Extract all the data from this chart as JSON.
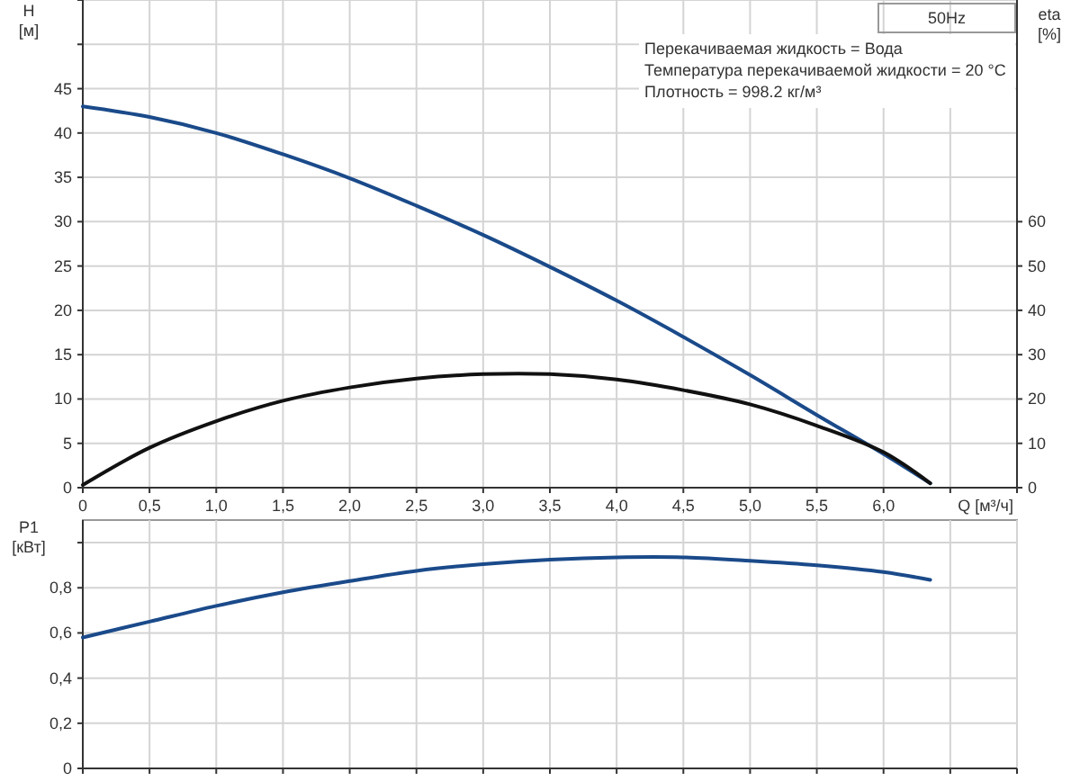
{
  "chart_data": [
    {
      "type": "line",
      "xlabel": "Q [м³/ч]",
      "ylabel": "H [м]",
      "y2label": "eta [%]",
      "annotations": [
        "50Hz",
        "Перекачиваемая жидкость = Вода",
        "Температура перекачиваемой жидкости = 20 °C",
        "Плотность = 998.2 кг/м³"
      ],
      "x": [
        0,
        0.5,
        1,
        1.5,
        2,
        2.5,
        3,
        3.5,
        4,
        4.5,
        5,
        5.5,
        6,
        6.35
      ],
      "series": [
        {
          "color": "#1a4a8a",
          "values": [
            43,
            41.8,
            40,
            37.6,
            34.9,
            31.8,
            28.5,
            24.9,
            21.1,
            17,
            12.7,
            8.2,
            3.8,
            0.5
          ]
        },
        {
          "color": "#111111",
          "axis": "y2",
          "values": [
            0.6,
            9,
            15,
            19.6,
            22.6,
            24.6,
            25.6,
            25.6,
            24.4,
            22,
            18.8,
            14,
            8,
            1
          ]
        }
      ],
      "xlim": [
        0,
        7
      ],
      "xticks": [
        0,
        {
          "value": 0.5,
          "label": "0,5"
        },
        {
          "value": 1,
          "label": "1,0"
        },
        {
          "value": 1.5,
          "label": "1,5"
        },
        {
          "value": 2,
          "label": "2,0"
        },
        {
          "value": 2.5,
          "label": "2,5"
        },
        {
          "value": 3,
          "label": "3,0"
        },
        {
          "value": 3.5,
          "label": "3,5"
        },
        {
          "value": 4,
          "label": "4,0"
        },
        {
          "value": 4.5,
          "label": "4,5"
        },
        {
          "value": 5,
          "label": "5,0"
        },
        {
          "value": 5.5,
          "label": "5,5"
        },
        {
          "value": 6,
          "label": "6,0"
        },
        {
          "value": 6.5,
          "label": null
        },
        {
          "value": 7,
          "label": null
        }
      ],
      "ylim": [
        0,
        55
      ],
      "yticks": [
        0,
        5,
        10,
        15,
        20,
        25,
        30,
        35,
        40,
        45,
        {
          "value": 50,
          "label": null
        },
        {
          "value": 55,
          "label": null
        }
      ],
      "y2lim": [
        0,
        110
      ],
      "y2ticks": [
        0,
        10,
        20,
        30,
        40,
        50,
        60
      ],
      "grid": true
    },
    {
      "type": "line",
      "ylabel": "P1 [кВт]",
      "x": [
        0,
        0.5,
        1,
        1.5,
        2,
        2.5,
        3,
        3.5,
        4,
        4.5,
        5,
        5.5,
        6,
        6.35
      ],
      "series": [
        {
          "color": "#1a4a8a",
          "values": [
            0.58,
            0.65,
            0.72,
            0.78,
            0.83,
            0.875,
            0.905,
            0.925,
            0.935,
            0.935,
            0.92,
            0.9,
            0.87,
            0.835
          ]
        }
      ],
      "xlim": [
        0,
        7
      ],
      "xticks": [
        0,
        0.5,
        1,
        1.5,
        2,
        2.5,
        3,
        3.5,
        4,
        4.5,
        5,
        5.5,
        6,
        6.5,
        7
      ],
      "ylim": [
        0,
        1.1
      ],
      "yticks": [
        0,
        {
          "value": 0.2,
          "label": "0,2"
        },
        {
          "value": 0.4,
          "label": "0,4"
        },
        {
          "value": 0.6,
          "label": "0,6"
        },
        {
          "value": 0.8,
          "label": "0,8"
        },
        {
          "value": 1,
          "label": null
        }
      ],
      "tick_labels": "y",
      "grid": true
    }
  ]
}
